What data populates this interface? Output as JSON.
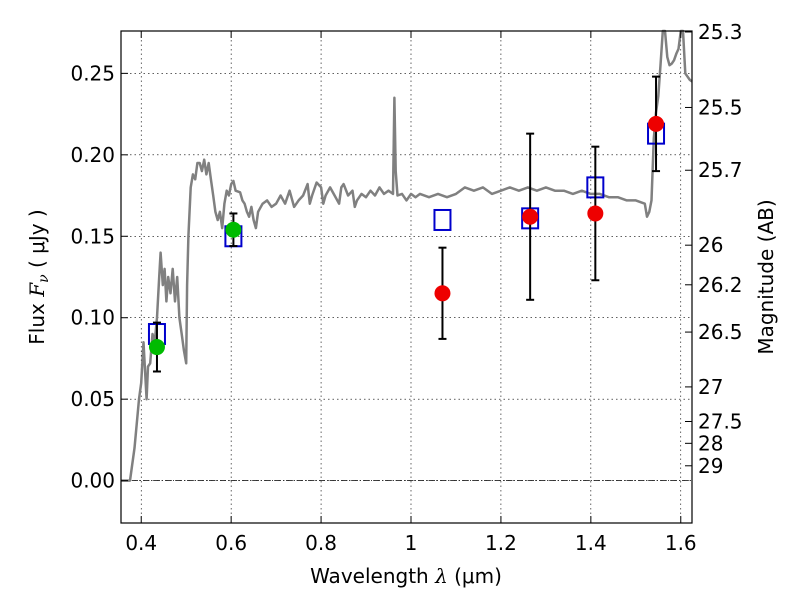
{
  "chart_data": {
    "type": "scatter",
    "xlabel": "Wavelength  λ (μm)",
    "xlabel_parts": {
      "main": "Wavelength  ",
      "sym": "λ",
      "unit": " (μm)"
    },
    "ylabel_parts": {
      "main": "Flux  ",
      "sym": "F",
      "sub": "ν",
      "unit": "  ( μJy )"
    },
    "ylabel_right": "Magnitude (AB)",
    "xlim": [
      0.355,
      1.625
    ],
    "ylim": [
      -0.026,
      0.276
    ],
    "x_ticks": [
      0.4,
      0.6,
      0.8,
      1.0,
      1.2,
      1.4,
      1.6
    ],
    "x_tick_labels": [
      "0.4",
      "0.6",
      "0.8",
      "1",
      "1.2",
      "1.4",
      "1.6"
    ],
    "y_ticks": [
      0.0,
      0.05,
      0.1,
      0.15,
      0.2,
      0.25
    ],
    "y_tick_labels": [
      "0.00",
      "0.05",
      "0.10",
      "0.15",
      "0.20",
      "0.25"
    ],
    "right_axis_ticks": [
      {
        "mag": 25.3,
        "label": "25.3"
      },
      {
        "mag": 25.5,
        "label": "25.5"
      },
      {
        "mag": 25.7,
        "label": "25.7"
      },
      {
        "mag": 26.0,
        "label": "26"
      },
      {
        "mag": 26.2,
        "label": "26.2"
      },
      {
        "mag": 26.5,
        "label": "26.5"
      },
      {
        "mag": 27.0,
        "label": "27"
      },
      {
        "mag": 27.5,
        "label": "27.5"
      },
      {
        "mag": 28.0,
        "label": "28"
      },
      {
        "mag": 29.0,
        "label": "29"
      }
    ],
    "grid": true,
    "colors": {
      "template": "#808080",
      "model_box": "#0000cc",
      "optical": "#00bb00",
      "nir": "#ee0000",
      "errorbar": "#000000"
    },
    "template_spectrum": [
      [
        0.355,
        0.0
      ],
      [
        0.37,
        0.0
      ],
      [
        0.375,
        0.0
      ],
      [
        0.385,
        0.02
      ],
      [
        0.395,
        0.05
      ],
      [
        0.4,
        0.06
      ],
      [
        0.405,
        0.085
      ],
      [
        0.41,
        0.06
      ],
      [
        0.412,
        0.05
      ],
      [
        0.415,
        0.07
      ],
      [
        0.42,
        0.072
      ],
      [
        0.425,
        0.09
      ],
      [
        0.43,
        0.085
      ],
      [
        0.435,
        0.1
      ],
      [
        0.44,
        0.125
      ],
      [
        0.443,
        0.14
      ],
      [
        0.448,
        0.12
      ],
      [
        0.452,
        0.13
      ],
      [
        0.456,
        0.11
      ],
      [
        0.46,
        0.125
      ],
      [
        0.465,
        0.115
      ],
      [
        0.47,
        0.13
      ],
      [
        0.475,
        0.11
      ],
      [
        0.48,
        0.125
      ],
      [
        0.485,
        0.1
      ],
      [
        0.49,
        0.09
      ],
      [
        0.495,
        0.08
      ],
      [
        0.5,
        0.072
      ],
      [
        0.502,
        0.12
      ],
      [
        0.505,
        0.15
      ],
      [
        0.51,
        0.18
      ],
      [
        0.515,
        0.188
      ],
      [
        0.52,
        0.185
      ],
      [
        0.525,
        0.195
      ],
      [
        0.53,
        0.195
      ],
      [
        0.535,
        0.19
      ],
      [
        0.54,
        0.197
      ],
      [
        0.545,
        0.188
      ],
      [
        0.55,
        0.195
      ],
      [
        0.555,
        0.185
      ],
      [
        0.56,
        0.175
      ],
      [
        0.565,
        0.165
      ],
      [
        0.57,
        0.16
      ],
      [
        0.575,
        0.165
      ],
      [
        0.58,
        0.155
      ],
      [
        0.585,
        0.17
      ],
      [
        0.59,
        0.178
      ],
      [
        0.595,
        0.175
      ],
      [
        0.6,
        0.182
      ],
      [
        0.605,
        0.184
      ],
      [
        0.61,
        0.178
      ],
      [
        0.62,
        0.177
      ],
      [
        0.625,
        0.172
      ],
      [
        0.63,
        0.17
      ],
      [
        0.635,
        0.165
      ],
      [
        0.64,
        0.162
      ],
      [
        0.645,
        0.168
      ],
      [
        0.65,
        0.16
      ],
      [
        0.655,
        0.155
      ],
      [
        0.66,
        0.165
      ],
      [
        0.67,
        0.17
      ],
      [
        0.68,
        0.172
      ],
      [
        0.69,
        0.168
      ],
      [
        0.7,
        0.17
      ],
      [
        0.71,
        0.175
      ],
      [
        0.72,
        0.17
      ],
      [
        0.73,
        0.178
      ],
      [
        0.74,
        0.168
      ],
      [
        0.75,
        0.172
      ],
      [
        0.76,
        0.175
      ],
      [
        0.77,
        0.182
      ],
      [
        0.775,
        0.17
      ],
      [
        0.78,
        0.175
      ],
      [
        0.79,
        0.183
      ],
      [
        0.8,
        0.18
      ],
      [
        0.805,
        0.17
      ],
      [
        0.81,
        0.175
      ],
      [
        0.82,
        0.18
      ],
      [
        0.83,
        0.175
      ],
      [
        0.84,
        0.17
      ],
      [
        0.845,
        0.18
      ],
      [
        0.85,
        0.182
      ],
      [
        0.86,
        0.175
      ],
      [
        0.87,
        0.178
      ],
      [
        0.875,
        0.168
      ],
      [
        0.88,
        0.172
      ],
      [
        0.89,
        0.176
      ],
      [
        0.9,
        0.174
      ],
      [
        0.91,
        0.178
      ],
      [
        0.92,
        0.175
      ],
      [
        0.93,
        0.18
      ],
      [
        0.94,
        0.176
      ],
      [
        0.95,
        0.178
      ],
      [
        0.96,
        0.176
      ],
      [
        0.963,
        0.235
      ],
      [
        0.966,
        0.19
      ],
      [
        0.97,
        0.175
      ],
      [
        0.98,
        0.176
      ],
      [
        0.99,
        0.172
      ],
      [
        1.0,
        0.176
      ],
      [
        1.01,
        0.174
      ],
      [
        1.02,
        0.176
      ],
      [
        1.04,
        0.174
      ],
      [
        1.06,
        0.176
      ],
      [
        1.08,
        0.174
      ],
      [
        1.1,
        0.176
      ],
      [
        1.12,
        0.18
      ],
      [
        1.14,
        0.178
      ],
      [
        1.16,
        0.18
      ],
      [
        1.18,
        0.176
      ],
      [
        1.2,
        0.178
      ],
      [
        1.22,
        0.18
      ],
      [
        1.24,
        0.178
      ],
      [
        1.26,
        0.18
      ],
      [
        1.28,
        0.178
      ],
      [
        1.3,
        0.18
      ],
      [
        1.32,
        0.178
      ],
      [
        1.34,
        0.178
      ],
      [
        1.36,
        0.176
      ],
      [
        1.38,
        0.178
      ],
      [
        1.4,
        0.176
      ],
      [
        1.42,
        0.176
      ],
      [
        1.44,
        0.174
      ],
      [
        1.46,
        0.174
      ],
      [
        1.48,
        0.172
      ],
      [
        1.5,
        0.172
      ],
      [
        1.52,
        0.17
      ],
      [
        1.525,
        0.162
      ],
      [
        1.53,
        0.165
      ],
      [
        1.535,
        0.172
      ],
      [
        1.54,
        0.21
      ],
      [
        1.545,
        0.226
      ],
      [
        1.55,
        0.236
      ],
      [
        1.555,
        0.255
      ],
      [
        1.56,
        0.276
      ],
      [
        1.565,
        0.276
      ],
      [
        1.57,
        0.26
      ],
      [
        1.575,
        0.255
      ],
      [
        1.58,
        0.256
      ],
      [
        1.585,
        0.258
      ],
      [
        1.59,
        0.262
      ],
      [
        1.595,
        0.265
      ],
      [
        1.6,
        0.276
      ],
      [
        1.605,
        0.276
      ],
      [
        1.61,
        0.25
      ],
      [
        1.615,
        0.248
      ],
      [
        1.62,
        0.246
      ],
      [
        1.625,
        0.245
      ]
    ],
    "model_boxes": [
      {
        "x": 0.435,
        "y": 0.09
      },
      {
        "x": 0.605,
        "y": 0.15
      },
      {
        "x": 1.07,
        "y": 0.16
      },
      {
        "x": 1.265,
        "y": 0.161
      },
      {
        "x": 1.41,
        "y": 0.18
      },
      {
        "x": 1.545,
        "y": 0.213
      }
    ],
    "series": [
      {
        "color_key": "optical",
        "points": [
          {
            "x": 0.435,
            "y": 0.082,
            "yerr": 0.015
          },
          {
            "x": 0.605,
            "y": 0.154,
            "yerr": 0.01
          }
        ]
      },
      {
        "color_key": "nir",
        "points": [
          {
            "x": 1.07,
            "y": 0.115,
            "yerr": 0.028
          },
          {
            "x": 1.265,
            "y": 0.162,
            "yerr": 0.051
          },
          {
            "x": 1.41,
            "y": 0.164,
            "yerr": 0.041
          },
          {
            "x": 1.545,
            "y": 0.219,
            "yerr": 0.029
          }
        ]
      }
    ]
  }
}
